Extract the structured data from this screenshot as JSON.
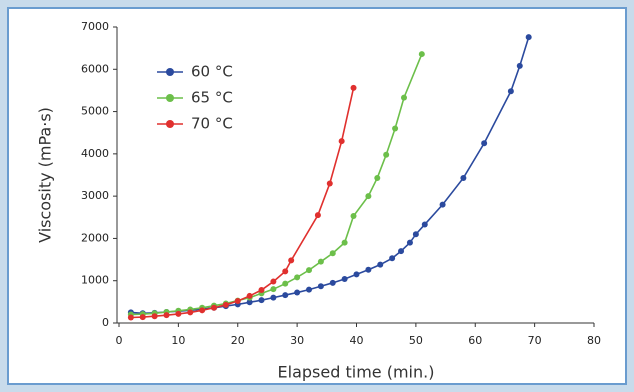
{
  "chart_data": {
    "type": "line",
    "xlabel": "Elapsed time (min.)",
    "ylabel": "Viscosity (mPa·s)",
    "xlim": [
      0,
      80
    ],
    "xticks": [
      0,
      10,
      20,
      30,
      40,
      50,
      60,
      70,
      80
    ],
    "ylim": [
      0,
      7000
    ],
    "yticks": [
      0,
      1000,
      2000,
      3000,
      4000,
      5000,
      6000,
      7000
    ],
    "legend": "upper-left",
    "series": [
      {
        "name": "60 °C",
        "color": "#2b4a9e",
        "x": [
          2,
          4,
          6,
          8,
          10,
          12,
          14,
          16,
          18,
          20,
          22,
          24,
          26,
          28,
          30,
          32,
          34,
          36,
          38,
          40,
          42,
          44,
          46,
          47.5,
          49,
          50,
          51.5,
          54.5,
          58,
          61.5,
          66,
          67.5,
          69
        ],
        "values": [
          250,
          230,
          240,
          260,
          280,
          300,
          330,
          360,
          400,
          440,
          490,
          540,
          600,
          660,
          720,
          790,
          870,
          950,
          1040,
          1150,
          1260,
          1380,
          1530,
          1700,
          1900,
          2100,
          2330,
          2800,
          3430,
          4250,
          5480,
          6080,
          6760
        ]
      },
      {
        "name": "65 °C",
        "color": "#6cbf4a",
        "x": [
          2,
          4,
          6,
          8,
          10,
          12,
          14,
          16,
          18,
          20,
          22,
          24,
          26,
          28,
          30,
          32,
          34,
          36,
          38,
          39.5,
          42,
          43.5,
          45,
          46.5,
          48,
          51
        ],
        "values": [
          200,
          210,
          230,
          260,
          290,
          320,
          360,
          410,
          460,
          530,
          600,
          700,
          800,
          930,
          1080,
          1250,
          1450,
          1650,
          1900,
          2530,
          3000,
          3430,
          3980,
          4600,
          5330,
          6360
        ]
      },
      {
        "name": "70 °C",
        "color": "#e0302e",
        "x": [
          2,
          4,
          6,
          8,
          10,
          12,
          14,
          16,
          18,
          20,
          22,
          24,
          26,
          28,
          29,
          33.5,
          35.5,
          37.5,
          39.5
        ],
        "values": [
          130,
          140,
          160,
          185,
          215,
          250,
          300,
          360,
          430,
          520,
          640,
          780,
          980,
          1220,
          1480,
          2550,
          3300,
          4300,
          5560
        ]
      }
    ]
  }
}
